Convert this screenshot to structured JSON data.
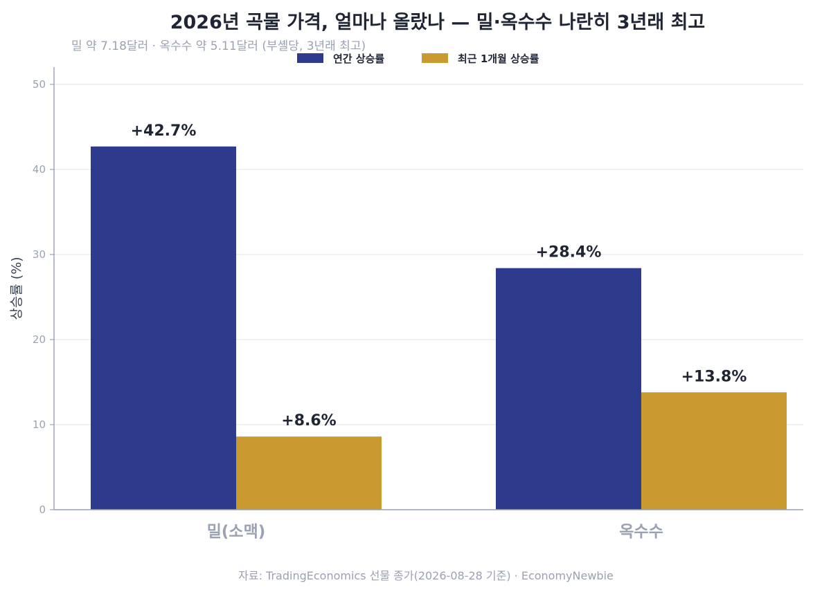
{
  "title": "2026년 곡물 가격, 얼마나 올랐나 — 밀·옥수수 나란히 3년래 최고",
  "subtitle": "밀 약 7.18달러 · 옥수수 약 5.11달러 (부셸당, 3년래 최고)",
  "source": "자료: TradingEconomics 선물 종가(2026-08-28 기준) · EconomyNewbie",
  "chart_data": {
    "type": "bar",
    "categories": [
      "밀(소맥)",
      "옥수수"
    ],
    "series": [
      {
        "name": "연간 상승률",
        "values": [
          42.7,
          28.4
        ],
        "labels": [
          "+42.7%",
          "+28.4%"
        ],
        "color": "#2e3a8c"
      },
      {
        "name": "최근 1개월 상승률",
        "values": [
          8.6,
          13.8
        ],
        "labels": [
          "+8.6%",
          "+13.8%"
        ],
        "color": "#c89a2f"
      }
    ],
    "xlabel": "",
    "ylabel": "상승률 (%)",
    "ylim": [
      0,
      50
    ],
    "yticks": [
      "0",
      "10",
      "20",
      "30",
      "40",
      "50"
    ],
    "grid": true,
    "legend": "top-center"
  }
}
